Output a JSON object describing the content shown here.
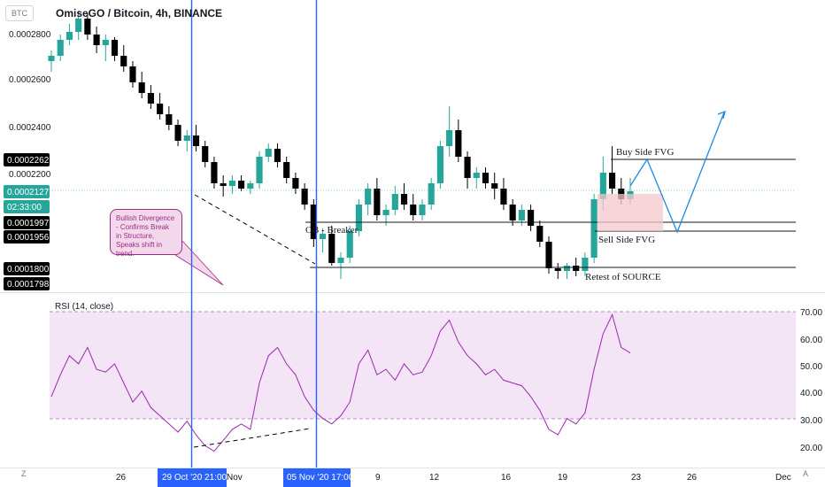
{
  "symbol_badge": "BTC",
  "title": "OmiseGO / Bitcoin, 4h, BINANCE",
  "price_axis": {
    "ticks": [
      "0.0002800",
      "0.0002600",
      "0.0002400",
      "0.0002200",
      "0.0001800"
    ],
    "badges": [
      {
        "text": "0.0002262",
        "bg": "#000000",
        "fg": "#ffffff"
      },
      {
        "text": "0.0002127",
        "bg": "#26a69a",
        "fg": "#ffffff"
      },
      {
        "text": "02:33:00",
        "bg": "#26a69a",
        "fg": "#ffffff"
      },
      {
        "text": "0.0001997",
        "bg": "#000000",
        "fg": "#ffffff"
      },
      {
        "text": "0.0001956",
        "bg": "#000000",
        "fg": "#ffffff"
      },
      {
        "text": "0.0001800",
        "bg": "#000000",
        "fg": "#ffffff"
      },
      {
        "text": "0.0001798",
        "bg": "#000000",
        "fg": "#ffffff"
      }
    ]
  },
  "rsi_axis": {
    "ticks": [
      "70.00",
      "60.00",
      "50.00",
      "40.00",
      "30.00",
      "20.00"
    ]
  },
  "rsi_label": "RSI (14, close)",
  "annotations": {
    "buy_side_fvg": "Buy Side FVG",
    "sell_side_fvg": "Sell Side FVG",
    "ob_breaker": "OB - Breaker",
    "retest": "Retest of SOURCE",
    "callout": "Bullish Divergence - Confirms Break in Structure, Speaks shift in trend."
  },
  "time_axis": {
    "ticks": [
      "26",
      "Nov",
      "9",
      "12",
      "16",
      "19",
      "23",
      "26",
      "Dec"
    ],
    "highlight_1": "29 Oct '20  21:00",
    "highlight_2": "05 Nov '20  17:00"
  },
  "buttons": {
    "zoom": "Z",
    "auto": "A"
  },
  "colors": {
    "up": "#26a69a",
    "down": "#000000",
    "rsi": "#9c27b0",
    "rsi_band": "#f3e5f5",
    "crosshair": "#2962ff",
    "zone": "#f4c7cb",
    "projection": "#1e88e5"
  },
  "chart_data": {
    "type": "candlestick",
    "ohlc_series": [
      [
        0.000262,
        0.000266,
        0.000258,
        0.000264
      ],
      [
        0.000264,
        0.000272,
        0.000262,
        0.00027
      ],
      [
        0.00027,
        0.000276,
        0.000268,
        0.000273
      ],
      [
        0.000273,
        0.000281,
        0.00027,
        0.000278
      ],
      [
        0.000278,
        0.00028,
        0.00027,
        0.000272
      ],
      [
        0.000272,
        0.000275,
        0.000265,
        0.000268
      ],
      [
        0.000268,
        0.000272,
        0.000262,
        0.00027
      ],
      [
        0.00027,
        0.000271,
        0.000262,
        0.000264
      ],
      [
        0.000264,
        0.000268,
        0.000258,
        0.00026
      ],
      [
        0.00026,
        0.000262,
        0.000252,
        0.000254
      ],
      [
        0.000254,
        0.000258,
        0.000248,
        0.00025
      ],
      [
        0.00025,
        0.000253,
        0.000244,
        0.000246
      ],
      [
        0.000246,
        0.00025,
        0.00024,
        0.000242
      ],
      [
        0.000242,
        0.000245,
        0.000236,
        0.000238
      ],
      [
        0.000238,
        0.00024,
        0.00023,
        0.000232
      ],
      [
        0.000232,
        0.000236,
        0.000228,
        0.000234
      ],
      [
        0.000234,
        0.000238,
        0.000228,
        0.00023
      ],
      [
        0.00023,
        0.000232,
        0.000222,
        0.000224
      ],
      [
        0.000224,
        0.000226,
        0.000214,
        0.000216
      ],
      [
        0.000216,
        0.000219,
        0.000211,
        0.000215
      ],
      [
        0.000215,
        0.000219,
        0.000212,
        0.000217
      ],
      [
        0.000217,
        0.000219,
        0.000213,
        0.000214
      ],
      [
        0.000214,
        0.000217,
        0.000212,
        0.000216
      ],
      [
        0.000216,
        0.000228,
        0.000214,
        0.000226
      ],
      [
        0.000226,
        0.000231,
        0.000224,
        0.000229
      ],
      [
        0.000229,
        0.000231,
        0.000222,
        0.000224
      ],
      [
        0.000224,
        0.000226,
        0.000216,
        0.000218
      ],
      [
        0.000218,
        0.00022,
        0.000212,
        0.000214
      ],
      [
        0.000214,
        0.000216,
        0.000206,
        0.000208
      ],
      [
        0.000208,
        0.00021,
        0.000192,
        0.000195
      ],
      [
        0.000195,
        0.000199,
        0.00019,
        0.000197
      ],
      [
        0.000197,
        0.0002,
        0.000185,
        0.000186
      ],
      [
        0.000186,
        0.00019,
        0.00018,
        0.000188
      ],
      [
        0.000188,
        0.0002,
        0.000186,
        0.000198
      ],
      [
        0.000198,
        0.00021,
        0.000196,
        0.000208
      ],
      [
        0.000208,
        0.000216,
        0.000204,
        0.000214
      ],
      [
        0.000214,
        0.000218,
        0.000202,
        0.000204
      ],
      [
        0.000204,
        0.000208,
        0.0002,
        0.000206
      ],
      [
        0.000206,
        0.000215,
        0.000204,
        0.000212
      ],
      [
        0.000212,
        0.000216,
        0.000206,
        0.000208
      ],
      [
        0.000208,
        0.000212,
        0.000202,
        0.000204
      ],
      [
        0.000204,
        0.00021,
        0.000202,
        0.000208
      ],
      [
        0.000208,
        0.000218,
        0.000206,
        0.000216
      ],
      [
        0.000216,
        0.000232,
        0.000214,
        0.00023
      ],
      [
        0.00023,
        0.000245,
        0.000226,
        0.000236
      ],
      [
        0.000236,
        0.00024,
        0.000224,
        0.000226
      ],
      [
        0.000226,
        0.000228,
        0.000214,
        0.000218
      ],
      [
        0.000218,
        0.000222,
        0.000214,
        0.00022
      ],
      [
        0.00022,
        0.000222,
        0.000214,
        0.000216
      ],
      [
        0.000216,
        0.00022,
        0.00021,
        0.000214
      ],
      [
        0.000214,
        0.000218,
        0.000206,
        0.000208
      ],
      [
        0.000208,
        0.00021,
        0.0002,
        0.000202
      ],
      [
        0.000202,
        0.000208,
        0.0002,
        0.000206
      ],
      [
        0.000206,
        0.000208,
        0.000198,
        0.0002
      ],
      [
        0.0002,
        0.000202,
        0.000192,
        0.000194
      ],
      [
        0.000194,
        0.000196,
        0.000182,
        0.000184
      ],
      [
        0.000184,
        0.000186,
        0.00018,
        0.000183
      ],
      [
        0.000183,
        0.000186,
        0.00018,
        0.000185
      ],
      [
        0.000185,
        0.000188,
        0.000181,
        0.000183
      ],
      [
        0.000183,
        0.00019,
        0.000181,
        0.000188
      ],
      [
        0.000188,
        0.000212,
        0.000186,
        0.00021
      ],
      [
        0.00021,
        0.000226,
        0.000206,
        0.00022
      ],
      [
        0.00022,
        0.00023,
        0.000212,
        0.000214
      ],
      [
        0.000214,
        0.000218,
        0.000208,
        0.00021
      ],
      [
        0.00021,
        0.000218,
        0.000208,
        0.000213
      ]
    ],
    "rsi": [
      40,
      48,
      55,
      52,
      58,
      50,
      49,
      52,
      45,
      38,
      42,
      36,
      33,
      30,
      27,
      31,
      26,
      22,
      20,
      24,
      28,
      30,
      28,
      45,
      55,
      58,
      52,
      48,
      40,
      35,
      32,
      30,
      33,
      38,
      52,
      57,
      48,
      50,
      46,
      52,
      48,
      49,
      55,
      64,
      68,
      60,
      55,
      52,
      48,
      50,
      46,
      45,
      44,
      40,
      35,
      28,
      26,
      32,
      30,
      34,
      50,
      63,
      70,
      58,
      56
    ],
    "rsi_range": [
      15,
      75
    ],
    "rsi_band": [
      30,
      70
    ],
    "price_range": [
      0.000175,
      0.000285
    ],
    "levels": [
      0.0002262,
      0.0001997,
      0.0001956,
      0.00018
    ]
  }
}
